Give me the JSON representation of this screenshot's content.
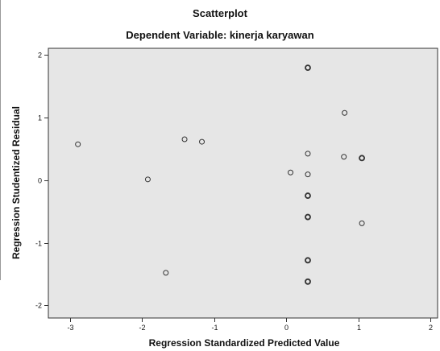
{
  "chart_data": {
    "type": "scatter",
    "title": "Scatterplot",
    "subtitle": "Dependent Variable: kinerja karyawan",
    "xlabel": "Regression Standardized Predicted Value",
    "ylabel": "Regression Studentized Residual",
    "xlim": [
      -3.3,
      2.1
    ],
    "ylim": [
      -2.2,
      2.1
    ],
    "xticks": [
      -3,
      -2,
      -1,
      0,
      1,
      2
    ],
    "yticks": [
      -2,
      -1,
      0,
      1,
      2
    ],
    "grid": false,
    "background_color": "#e6e6e6",
    "marker_color": "#333333",
    "points": [
      {
        "x": 0.3,
        "y": 1.79,
        "bold": true
      },
      {
        "x": 0.81,
        "y": 1.07,
        "bold": false
      },
      {
        "x": -1.41,
        "y": 0.65,
        "bold": false
      },
      {
        "x": -1.17,
        "y": 0.61,
        "bold": false
      },
      {
        "x": -2.89,
        "y": 0.57,
        "bold": false
      },
      {
        "x": 0.3,
        "y": 0.42,
        "bold": false
      },
      {
        "x": 0.8,
        "y": 0.37,
        "bold": false
      },
      {
        "x": 1.05,
        "y": 0.35,
        "bold": true
      },
      {
        "x": 0.06,
        "y": 0.12,
        "bold": false
      },
      {
        "x": 0.3,
        "y": 0.09,
        "bold": false
      },
      {
        "x": -1.92,
        "y": 0.01,
        "bold": false
      },
      {
        "x": 0.3,
        "y": -0.25,
        "bold": true
      },
      {
        "x": 0.3,
        "y": -0.59,
        "bold": true
      },
      {
        "x": 1.05,
        "y": -0.69,
        "bold": false
      },
      {
        "x": 0.3,
        "y": -1.28,
        "bold": true
      },
      {
        "x": -1.67,
        "y": -1.48,
        "bold": false
      },
      {
        "x": 0.3,
        "y": -1.62,
        "bold": true
      }
    ]
  }
}
